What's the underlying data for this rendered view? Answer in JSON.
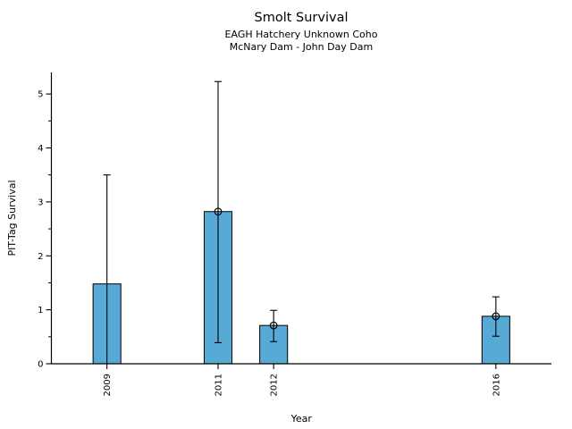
{
  "figure": {
    "background": "#ffffff",
    "text_color": "#000000"
  },
  "chart_data": {
    "type": "bar",
    "title": "Smolt Survival",
    "subtitle_lines": [
      "EAGH Hatchery Unknown Coho",
      "McNary Dam - John Day Dam"
    ],
    "xlabel": "Year",
    "ylabel": "PIT-Tag Survival",
    "xlim": [
      2008,
      2017
    ],
    "ylim": [
      0,
      5.4
    ],
    "yticks": [
      0,
      1,
      2,
      3,
      4,
      5
    ],
    "y_minor_step": 0.5,
    "grid": false,
    "legend": "none",
    "x": [
      2009,
      2011,
      2012,
      2016
    ],
    "x_tick_labels": [
      "2009",
      "2011",
      "2012",
      "2016"
    ],
    "x_label_rotation_deg": 90,
    "values": [
      1.48,
      2.82,
      0.71,
      0.88
    ],
    "err_low": [
      0.0,
      0.39,
      0.41,
      0.51
    ],
    "err_high": [
      3.5,
      5.23,
      0.99,
      1.24
    ],
    "point_markers": [
      false,
      true,
      true,
      true
    ],
    "marker_style": "open-circle",
    "bar_color": "#57A9D6",
    "bar_edge_color": "#000000",
    "errorbar_color": "#000000",
    "bar_width_years": 0.5
  }
}
